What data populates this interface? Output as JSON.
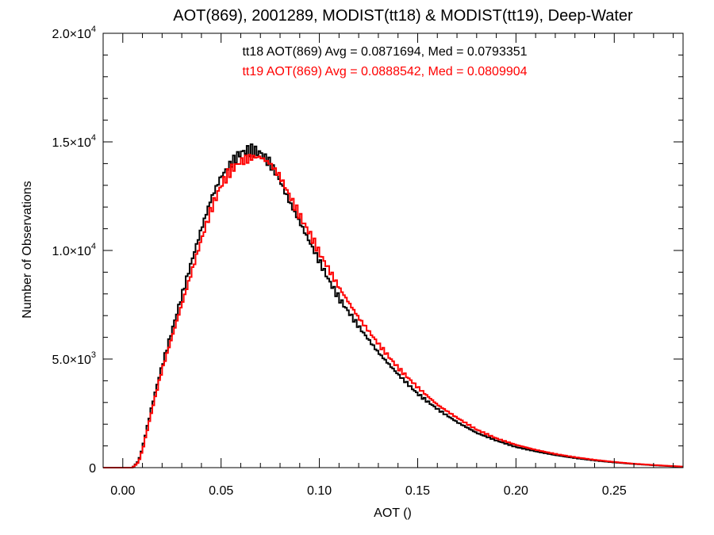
{
  "chart_data": {
    "type": "histogram",
    "title": "AOT(869), 2001289, MODIST(tt18) & MODIST(tt19), Deep-Water",
    "xlabel": "AOT ()",
    "ylabel": "Number of Observations",
    "xlim": [
      -0.01,
      0.285
    ],
    "ylim": [
      0,
      20000
    ],
    "x_ticks": [
      0.0,
      0.05,
      0.1,
      0.15,
      0.2,
      0.25
    ],
    "x_tick_labels": [
      "0.00",
      "0.05",
      "0.10",
      "0.15",
      "0.20",
      "0.25"
    ],
    "y_ticks": [
      {
        "value": 0,
        "mant": "0",
        "exp": ""
      },
      {
        "value": 5000,
        "mant": "5.0×10",
        "exp": "3"
      },
      {
        "value": 10000,
        "mant": "1.0×10",
        "exp": "4"
      },
      {
        "value": 15000,
        "mant": "1.5×10",
        "exp": "4"
      },
      {
        "value": 20000,
        "mant": "2.0×10",
        "exp": "4"
      }
    ],
    "annotations": [
      {
        "text": "tt18 AOT(869) Avg = 0.0871694, Med = 0.0793351",
        "color": "#000000"
      },
      {
        "text": "tt19 AOT(869) Avg = 0.0888542, Med = 0.0809904",
        "color": "#ff0000"
      }
    ],
    "grid": false,
    "series": [
      {
        "color": "#000000",
        "x": [
          -0.01,
          0.005,
          0.008,
          0.01,
          0.012,
          0.015,
          0.018,
          0.02,
          0.025,
          0.03,
          0.035,
          0.04,
          0.045,
          0.05,
          0.055,
          0.06,
          0.063,
          0.066,
          0.07,
          0.075,
          0.08,
          0.085,
          0.09,
          0.095,
          0.1,
          0.105,
          0.11,
          0.12,
          0.13,
          0.14,
          0.15,
          0.16,
          0.17,
          0.18,
          0.19,
          0.2,
          0.21,
          0.22,
          0.23,
          0.24,
          0.25,
          0.26,
          0.27,
          0.28,
          0.285
        ],
        "y": [
          0,
          0,
          300,
          900,
          1700,
          2900,
          4000,
          4700,
          6300,
          7900,
          9500,
          11000,
          12400,
          13400,
          14000,
          14500,
          14600,
          14600,
          14500,
          14000,
          13200,
          12200,
          11300,
          10400,
          9500,
          8600,
          7800,
          6500,
          5300,
          4300,
          3400,
          2700,
          2100,
          1600,
          1250,
          950,
          750,
          580,
          440,
          330,
          240,
          170,
          110,
          60,
          40
        ]
      },
      {
        "color": "#ff0000",
        "x": [
          -0.01,
          0.005,
          0.008,
          0.01,
          0.012,
          0.015,
          0.018,
          0.02,
          0.025,
          0.03,
          0.035,
          0.04,
          0.045,
          0.05,
          0.055,
          0.06,
          0.063,
          0.066,
          0.07,
          0.075,
          0.08,
          0.085,
          0.09,
          0.095,
          0.1,
          0.105,
          0.11,
          0.12,
          0.13,
          0.14,
          0.15,
          0.16,
          0.17,
          0.18,
          0.19,
          0.2,
          0.21,
          0.22,
          0.23,
          0.24,
          0.25,
          0.26,
          0.27,
          0.28,
          0.285
        ],
        "y": [
          0,
          0,
          250,
          800,
          1550,
          2700,
          3800,
          4500,
          6000,
          7500,
          9000,
          10500,
          11900,
          13000,
          13700,
          14100,
          14200,
          14300,
          14300,
          14000,
          13400,
          12500,
          11600,
          10800,
          9900,
          9100,
          8300,
          6900,
          5700,
          4600,
          3700,
          2900,
          2300,
          1750,
          1350,
          1050,
          820,
          630,
          480,
          360,
          260,
          180,
          120,
          70,
          45
        ]
      }
    ]
  }
}
